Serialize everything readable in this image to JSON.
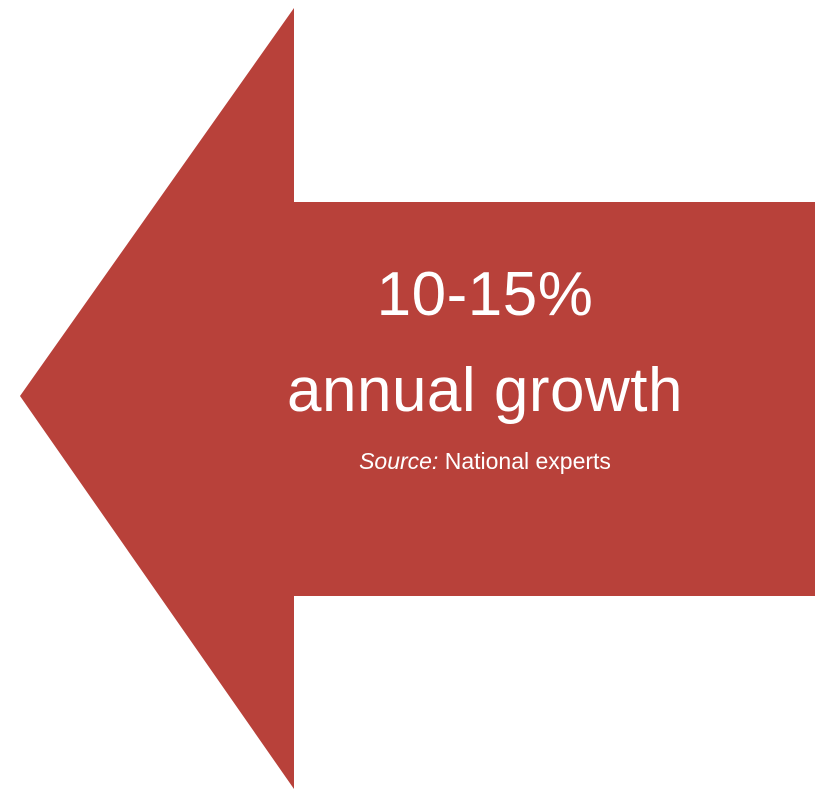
{
  "arrow": {
    "fill_color": "#B8413A",
    "text_color": "#FFFFFF",
    "direction": "left"
  },
  "text": {
    "value": "10-15%",
    "description": "annual growth",
    "source_label": "Source:",
    "source_text": "National experts"
  }
}
